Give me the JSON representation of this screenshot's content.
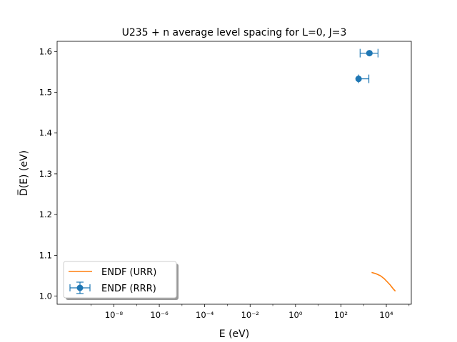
{
  "chart_data": {
    "type": "scatter",
    "title": "U235 + n average level spacing for L=0, J=3",
    "xlabel": "E (eV)",
    "ylabel": "D̅(E) (eV)",
    "xscale": "log",
    "xlim_log10": [
      -10.5,
      5.1
    ],
    "ylim": [
      0.98,
      1.625
    ],
    "xticks": [
      {
        "exp": -8,
        "label": "10⁻⁸"
      },
      {
        "exp": -6,
        "label": "10⁻⁶"
      },
      {
        "exp": -4,
        "label": "10⁻⁴"
      },
      {
        "exp": -2,
        "label": "10⁻²"
      },
      {
        "exp": 0,
        "label": "10⁰"
      },
      {
        "exp": 2,
        "label": "10²"
      },
      {
        "exp": 4,
        "label": "10⁴"
      }
    ],
    "yticks": [
      1.0,
      1.1,
      1.2,
      1.3,
      1.4,
      1.5,
      1.6
    ],
    "series": [
      {
        "name": "ENDF (RRR)",
        "kind": "errorbar",
        "color": "#1f77b4",
        "points": [
          {
            "x": 600,
            "y": 1.533,
            "xerr_low": 2e-10,
            "xerr_high": 1100
          },
          {
            "x": 1800,
            "y": 1.596,
            "xerr_low": 1100,
            "xerr_high": 2500
          }
        ]
      },
      {
        "name": "ENDF (URR)",
        "kind": "line",
        "color": "#ff7f0e",
        "x": [
          2250,
          3500,
          5500,
          8000,
          11000,
          15000,
          20000,
          25000
        ],
        "y": [
          1.058,
          1.055,
          1.05,
          1.043,
          1.035,
          1.027,
          1.018,
          1.012
        ]
      }
    ],
    "legend": {
      "placement": "lower-left",
      "entries": [
        "ENDF (URR)",
        "ENDF (RRR)"
      ]
    }
  }
}
